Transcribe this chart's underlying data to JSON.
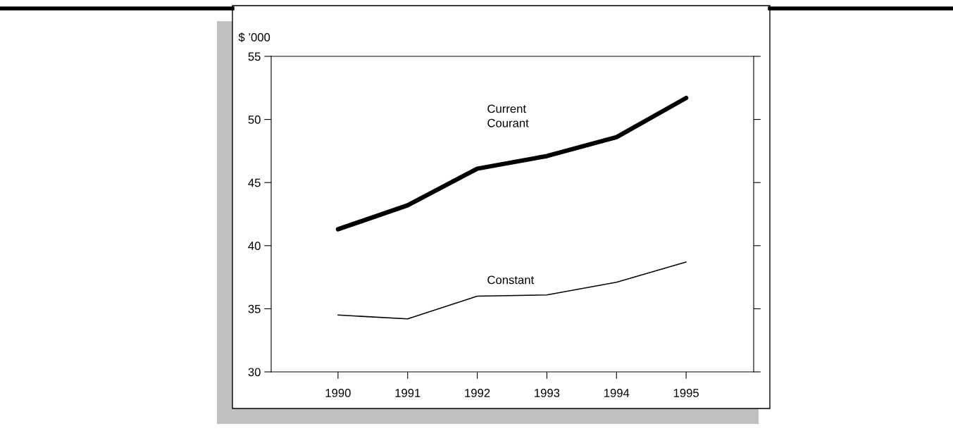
{
  "chart_data": {
    "type": "line",
    "ylabel": "$ ’000",
    "x": [
      1990,
      1991,
      1992,
      1993,
      1994,
      1995
    ],
    "series": [
      {
        "name": "Current\nCourant",
        "color": "#000000",
        "values": [
          41.3,
          43.2,
          46.1,
          47.1,
          48.6,
          51.7
        ]
      },
      {
        "name": "Constant",
        "color": "#000000",
        "values": [
          34.5,
          34.2,
          36.0,
          36.1,
          37.1,
          38.7
        ]
      }
    ],
    "xlim": [
      1989.04,
      1995.97
    ],
    "xticks": [
      1990,
      1991,
      1992,
      1993,
      1994,
      1995
    ],
    "ylim": [
      30,
      55
    ],
    "yticks": [
      30,
      35,
      40,
      45,
      50,
      55
    ],
    "grid": false,
    "legend": false,
    "marker": "none",
    "line_style": "solid"
  }
}
